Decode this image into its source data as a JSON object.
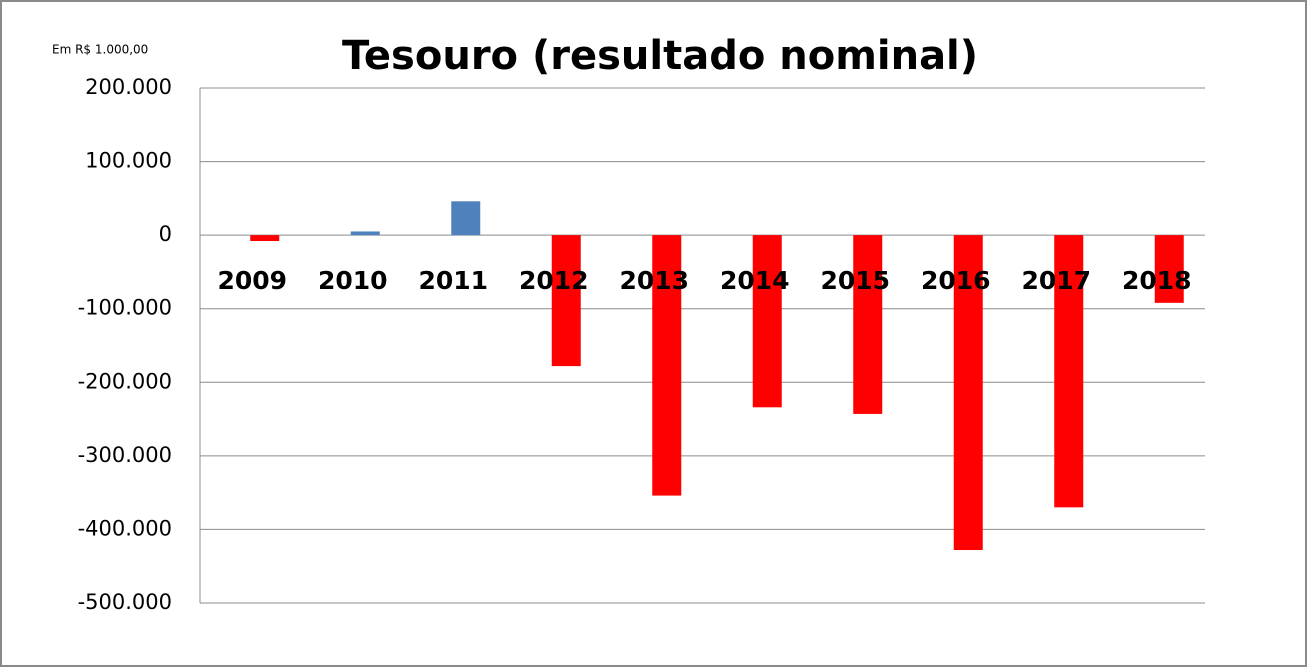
{
  "chart_data": {
    "type": "bar",
    "title": "Tesouro (resultado nominal)",
    "subtitle": "Em R$ 1.000,00",
    "categories": [
      "2009",
      "2010",
      "2011",
      "2012",
      "2013",
      "2014",
      "2015",
      "2016",
      "2017",
      "2018"
    ],
    "values": [
      -8000,
      5000,
      46000,
      -178000,
      -354000,
      -234000,
      -243000,
      -428000,
      -370000,
      -92000
    ],
    "colors": [
      "#ff0000",
      "#4f81bd",
      "#4f81bd",
      "#ff0000",
      "#ff0000",
      "#ff0000",
      "#ff0000",
      "#ff0000",
      "#ff0000",
      "#ff0000"
    ],
    "ylim": [
      -500000,
      200000
    ],
    "yticks": [
      {
        "value": -500000,
        "label": "-500.000"
      },
      {
        "value": -400000,
        "label": "-400.000"
      },
      {
        "value": -300000,
        "label": "-300.000"
      },
      {
        "value": -200000,
        "label": "-200.000"
      },
      {
        "value": -100000,
        "label": "-100.000"
      },
      0,
      {
        "value": 100000,
        "label": "100.000"
      },
      {
        "value": 200000,
        "label": "200.000"
      }
    ],
    "grid": true
  }
}
